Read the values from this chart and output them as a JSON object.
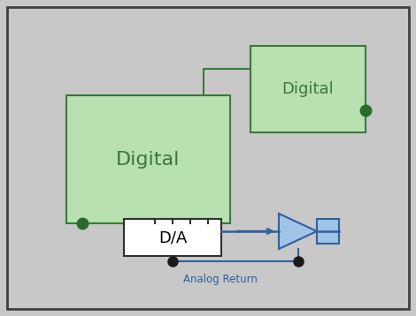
{
  "bg_color": "#c8c8c8",
  "border_color": "#404040",
  "green_box_fill": "#b8e0b0",
  "green_box_edge": "#3a7a3a",
  "da_box_fill": "#ffffff",
  "da_box_edge": "#303030",
  "blue_fill": "#a0c4e8",
  "blue_edge": "#3060a0",
  "dot_color": "#1a1a1a",
  "green_dot_color": "#2a6a2a",
  "wire_color": "#3060a0",
  "connector_wire_color": "#3a7a3a",
  "analog_return_color": "#3060a0",
  "analog_return_label": "Analog Return",
  "digital_label": "Digital",
  "da_label": "D/A",
  "fig_width": 4.7,
  "fig_height": 3.58,
  "dpi": 100
}
